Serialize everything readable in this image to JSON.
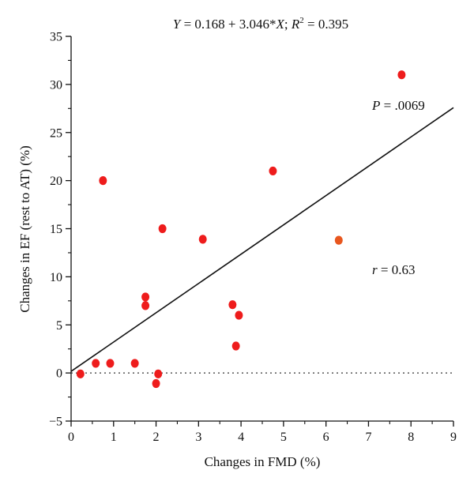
{
  "chart_data": {
    "type": "scatter",
    "title": {
      "pre_y": "Y",
      "mid": " = 0.168 + 3.046*",
      "x": "X",
      "semi": "; ",
      "r": "R",
      "sup": "2",
      "post": " = 0.395"
    },
    "xlabel": "Changes in FMD (%)",
    "ylabel": "Changes in EF (rest to AT) (%)",
    "xlim": [
      0,
      9
    ],
    "ylim": [
      -5,
      35
    ],
    "xticks": [
      "0",
      "1",
      "2",
      "3",
      "4",
      "5",
      "6",
      "7",
      "8",
      "9"
    ],
    "yticks": [
      "−5",
      "0",
      "5",
      "10",
      "15",
      "20",
      "25",
      "30",
      "35"
    ],
    "grid": false,
    "regression": {
      "intercept": 0.168,
      "slope": 3.046,
      "x_range": [
        0,
        9
      ]
    },
    "reference_line": {
      "y": 0,
      "style": "dotted"
    },
    "annotations": {
      "p_label": "P",
      "p_value": " = .0069",
      "r_label": "r",
      "r_value": " = 0.63"
    },
    "points": [
      {
        "x": 0.22,
        "y": -0.1,
        "color": "#ee1c1c"
      },
      {
        "x": 0.58,
        "y": 1.0,
        "color": "#ee1c1c"
      },
      {
        "x": 0.92,
        "y": 1.0,
        "color": "#ee1c1c"
      },
      {
        "x": 0.75,
        "y": 20.0,
        "color": "#ee1c1c"
      },
      {
        "x": 1.5,
        "y": 1.0,
        "color": "#ee1c1c"
      },
      {
        "x": 1.75,
        "y": 7.9,
        "color": "#ee1c1c"
      },
      {
        "x": 1.75,
        "y": 7.0,
        "color": "#ee1c1c"
      },
      {
        "x": 2.0,
        "y": -1.1,
        "color": "#ee1c1c"
      },
      {
        "x": 2.05,
        "y": -0.1,
        "color": "#ee1c1c"
      },
      {
        "x": 2.15,
        "y": 15.0,
        "color": "#ee1c1c"
      },
      {
        "x": 3.1,
        "y": 13.9,
        "color": "#ee1c1c"
      },
      {
        "x": 3.8,
        "y": 7.1,
        "color": "#ee1c1c"
      },
      {
        "x": 3.95,
        "y": 6.0,
        "color": "#ee1c1c"
      },
      {
        "x": 3.88,
        "y": 2.8,
        "color": "#ee1c1c"
      },
      {
        "x": 4.75,
        "y": 21.0,
        "color": "#ee1c1c"
      },
      {
        "x": 6.3,
        "y": 13.8,
        "color": "#e8561e"
      },
      {
        "x": 7.78,
        "y": 31.0,
        "color": "#ee1c1c"
      }
    ]
  }
}
